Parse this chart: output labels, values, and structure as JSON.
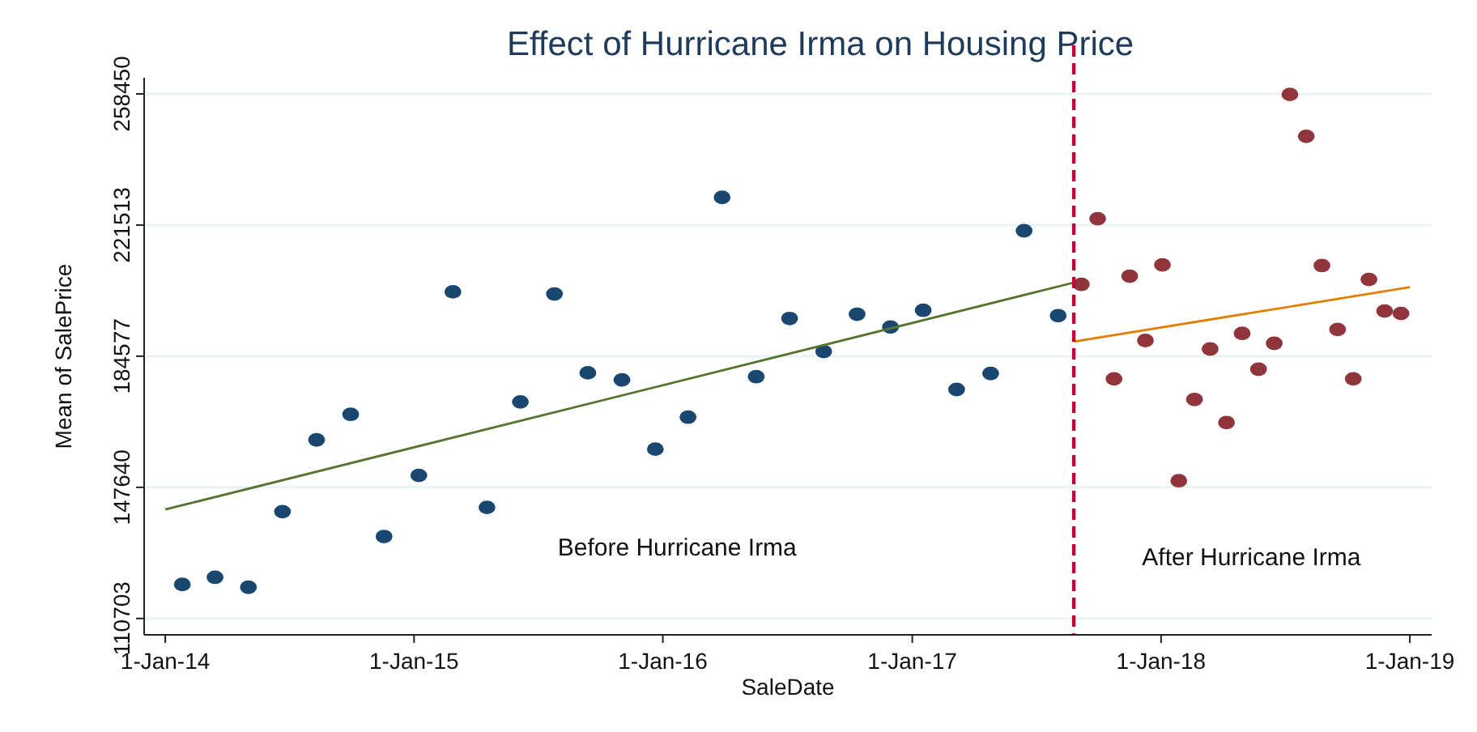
{
  "chart_data": {
    "type": "scatter",
    "title": "Effect of Hurricane Irma on Housing Price",
    "xlabel": "SaleDate",
    "ylabel": "Mean of SalePrice",
    "xlim": [
      "2013-12-01",
      "2019-02-02"
    ],
    "ylim": [
      106100,
      263000
    ],
    "xticks": [
      {
        "value": "2014-01-01",
        "label": "1-Jan-14"
      },
      {
        "value": "2015-01-01",
        "label": "1-Jan-15"
      },
      {
        "value": "2016-01-01",
        "label": "1-Jan-16"
      },
      {
        "value": "2017-01-01",
        "label": "1-Jan-17"
      },
      {
        "value": "2018-01-01",
        "label": "1-Jan-18"
      },
      {
        "value": "2019-01-01",
        "label": "1-Jan-19"
      }
    ],
    "yticks": [
      110703,
      147640,
      184577,
      221513,
      258450
    ],
    "grid": "y",
    "series": [
      {
        "marker": "circle",
        "color": "#1a476f",
        "x": [
          "2014-01-26",
          "2014-03-15",
          "2014-05-03",
          "2014-06-22",
          "2014-08-11",
          "2014-09-30",
          "2014-11-18",
          "2015-01-08",
          "2015-02-27",
          "2015-04-18",
          "2015-06-06",
          "2015-07-26",
          "2015-09-13",
          "2015-11-02",
          "2015-12-21",
          "2016-02-07",
          "2016-03-28",
          "2016-05-17",
          "2016-07-05",
          "2016-08-24",
          "2016-10-12",
          "2016-11-30",
          "2017-01-17",
          "2017-03-07",
          "2017-04-26",
          "2017-06-14",
          "2017-08-03"
        ],
        "values": [
          120300,
          122300,
          119500,
          140800,
          161000,
          168200,
          133800,
          151000,
          202700,
          142000,
          171700,
          202100,
          179900,
          177900,
          158400,
          167400,
          229300,
          178800,
          195200,
          185900,
          196400,
          192800,
          197500,
          175200,
          179700,
          219900,
          196000
        ]
      },
      {
        "marker": "circle",
        "color": "#90353b",
        "x": [
          "2017-09-06",
          "2017-09-30",
          "2017-10-24",
          "2017-11-16",
          "2017-12-09",
          "2018-01-03",
          "2018-01-27",
          "2018-02-19",
          "2018-03-14",
          "2018-04-07",
          "2018-04-30",
          "2018-05-24",
          "2018-06-16",
          "2018-07-09",
          "2018-08-02",
          "2018-08-25",
          "2018-09-17",
          "2018-10-10",
          "2018-11-02",
          "2018-11-25",
          "2018-12-19"
        ],
        "values": [
          204800,
          223300,
          178200,
          207100,
          189000,
          210300,
          149500,
          172400,
          186600,
          165900,
          191000,
          180900,
          188200,
          258300,
          246500,
          210100,
          192100,
          178200,
          206200,
          197300,
          196600
        ]
      },
      {
        "type": "line",
        "color": "#55752f",
        "x": [
          "2014-01-01",
          "2017-08-26"
        ],
        "values": [
          141400,
          205300
        ]
      },
      {
        "type": "line",
        "color": "#e37e00",
        "x": [
          "2017-08-26",
          "2019-01-01"
        ],
        "values": [
          188700,
          204000
        ]
      }
    ],
    "ref_lines": [
      {
        "axis": "x",
        "value": "2017-08-26",
        "color": "#c10534",
        "line_style": "dashed"
      }
    ],
    "annotations": [
      "Before Hurricane Irma",
      "After Hurricane Irma"
    ]
  }
}
